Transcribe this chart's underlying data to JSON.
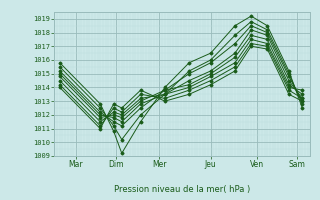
{
  "background_color": "#cce8e8",
  "plot_bg_color": "#cce8e8",
  "grid_color_major": "#99bbbb",
  "grid_color_minor": "#bbdddd",
  "line_color": "#1a5c1a",
  "ylabel": "Pression niveau de la mer( hPa )",
  "ylim": [
    1009,
    1019.5
  ],
  "yticks": [
    1009,
    1010,
    1011,
    1012,
    1013,
    1014,
    1015,
    1016,
    1017,
    1018,
    1019
  ],
  "days": [
    "Mar",
    "Dim",
    "Mer",
    "Jeu",
    "Ven",
    "Sam"
  ],
  "day_positions": [
    0.13,
    0.28,
    0.44,
    0.63,
    0.8,
    0.95
  ],
  "xlim": [
    0.05,
    1.0
  ],
  "lines": [
    {
      "x": [
        0.07,
        0.22,
        0.27,
        0.3,
        0.37,
        0.46,
        0.55,
        0.63,
        0.72,
        0.78,
        0.84,
        0.92,
        0.97
      ],
      "y": [
        1015.8,
        1012.8,
        1010.8,
        1009.2,
        1011.5,
        1014.0,
        1015.8,
        1016.5,
        1018.5,
        1019.2,
        1018.5,
        1015.2,
        1012.5
      ]
    },
    {
      "x": [
        0.07,
        0.22,
        0.27,
        0.3,
        0.37,
        0.46,
        0.55,
        0.63,
        0.72,
        0.78,
        0.84,
        0.92,
        0.97
      ],
      "y": [
        1015.5,
        1012.5,
        1011.2,
        1010.2,
        1012.0,
        1013.5,
        1015.2,
        1016.0,
        1017.8,
        1018.8,
        1018.2,
        1015.0,
        1012.8
      ]
    },
    {
      "x": [
        0.07,
        0.22,
        0.27,
        0.3,
        0.37,
        0.46,
        0.55,
        0.63,
        0.72,
        0.78,
        0.84,
        0.92,
        0.97
      ],
      "y": [
        1015.2,
        1012.2,
        1011.5,
        1011.2,
        1012.5,
        1013.8,
        1015.0,
        1015.8,
        1017.2,
        1018.5,
        1018.0,
        1014.8,
        1013.0
      ]
    },
    {
      "x": [
        0.07,
        0.22,
        0.27,
        0.3,
        0.37,
        0.46,
        0.55,
        0.63,
        0.72,
        0.78,
        0.84,
        0.92,
        0.97
      ],
      "y": [
        1015.0,
        1012.0,
        1011.8,
        1011.5,
        1012.8,
        1013.5,
        1014.5,
        1015.2,
        1016.5,
        1018.2,
        1017.8,
        1014.5,
        1013.2
      ]
    },
    {
      "x": [
        0.07,
        0.22,
        0.27,
        0.3,
        0.37,
        0.46,
        0.55,
        0.63,
        0.72,
        0.78,
        0.84,
        0.92,
        0.97
      ],
      "y": [
        1014.8,
        1011.8,
        1012.0,
        1011.8,
        1013.0,
        1013.8,
        1014.2,
        1015.0,
        1016.2,
        1017.8,
        1017.5,
        1014.2,
        1013.5
      ]
    },
    {
      "x": [
        0.07,
        0.22,
        0.27,
        0.3,
        0.37,
        0.46,
        0.55,
        0.63,
        0.72,
        0.78,
        0.84,
        0.92,
        0.97
      ],
      "y": [
        1014.5,
        1011.5,
        1012.2,
        1012.0,
        1013.2,
        1013.5,
        1014.0,
        1014.8,
        1015.8,
        1017.5,
        1017.2,
        1014.0,
        1013.8
      ]
    },
    {
      "x": [
        0.07,
        0.22,
        0.27,
        0.3,
        0.37,
        0.46,
        0.55,
        0.63,
        0.72,
        0.78,
        0.84,
        0.92,
        0.97
      ],
      "y": [
        1014.2,
        1011.2,
        1012.5,
        1012.2,
        1013.5,
        1013.2,
        1013.8,
        1014.5,
        1015.5,
        1017.2,
        1017.0,
        1013.8,
        1013.2
      ]
    },
    {
      "x": [
        0.07,
        0.22,
        0.27,
        0.3,
        0.37,
        0.46,
        0.55,
        0.63,
        0.72,
        0.78,
        0.84,
        0.92,
        0.97
      ],
      "y": [
        1014.0,
        1011.0,
        1012.8,
        1012.5,
        1013.8,
        1013.0,
        1013.5,
        1014.2,
        1015.2,
        1017.0,
        1016.8,
        1013.5,
        1013.0
      ]
    }
  ]
}
